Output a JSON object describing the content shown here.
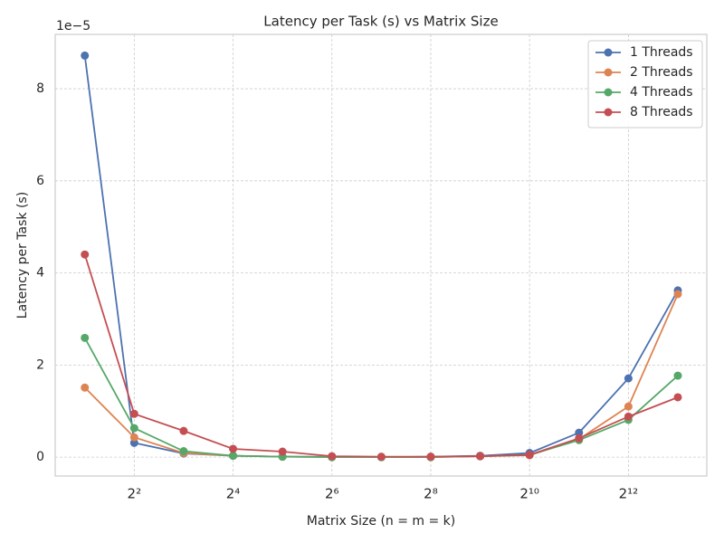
{
  "chart_data": {
    "type": "line",
    "title": "Latency per Task (s) vs Matrix Size",
    "x_label": "Matrix Size (n = m = k)",
    "y_label": "Latency per Task (s)",
    "y_offset_label": "1e−5",
    "x": [
      2,
      4,
      8,
      16,
      32,
      64,
      128,
      256,
      512,
      1024,
      2048,
      4096,
      8192
    ],
    "x_log_base": 2,
    "series": [
      {
        "name": "1 Threads",
        "color": "#4c72b0",
        "values": [
          8.72,
          0.31,
          0.08,
          0.03,
          0.01,
          0.01,
          0.0,
          0.01,
          0.03,
          0.09,
          0.53,
          1.71,
          3.62
        ]
      },
      {
        "name": "2 Threads",
        "color": "#dd8452",
        "values": [
          1.51,
          0.43,
          0.09,
          0.03,
          0.01,
          0.0,
          0.0,
          0.0,
          0.02,
          0.04,
          0.39,
          1.1,
          3.54
        ]
      },
      {
        "name": "4 Threads",
        "color": "#55a868",
        "values": [
          2.59,
          0.63,
          0.13,
          0.03,
          0.01,
          0.0,
          0.0,
          0.0,
          0.02,
          0.05,
          0.37,
          0.81,
          1.77
        ]
      },
      {
        "name": "8 Threads",
        "color": "#c44e52",
        "values": [
          4.4,
          0.94,
          0.57,
          0.18,
          0.12,
          0.02,
          0.01,
          0.01,
          0.02,
          0.05,
          0.41,
          0.88,
          1.3
        ]
      }
    ],
    "xlim": [
      1.32,
      12300
    ],
    "ylim": [
      -0.41,
      9.18
    ],
    "xticks": [
      {
        "value": 4,
        "label": "2²"
      },
      {
        "value": 16,
        "label": "2⁴"
      },
      {
        "value": 64,
        "label": "2⁶"
      },
      {
        "value": 256,
        "label": "2⁸"
      },
      {
        "value": 1024,
        "label": "2¹⁰"
      },
      {
        "value": 4096,
        "label": "2¹²"
      }
    ],
    "yticks": [
      0,
      2,
      4,
      6,
      8
    ],
    "grid": true,
    "legend": "upper-right"
  }
}
